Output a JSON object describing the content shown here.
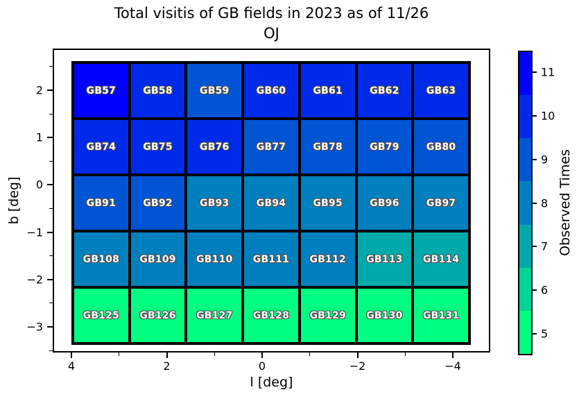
{
  "title": {
    "line1": "Total visitis of GB fields in 2023 as of 11/26",
    "line2": "OJ"
  },
  "axes": {
    "xlabel": "l [deg]",
    "ylabel": "b [deg]",
    "x_tick_values": [
      4,
      2,
      0,
      -2,
      -4
    ],
    "x_minor_tick_values": [
      3,
      1,
      -1,
      -3
    ],
    "y_tick_values": [
      2,
      1,
      0,
      -1,
      -2,
      -3
    ],
    "y_minor_tick_values": [
      2.5,
      1.5,
      0.5,
      -0.5,
      -1.5,
      -2.5,
      -3.5
    ]
  },
  "colorbar": {
    "label": "Observed Times",
    "ticks": [
      11,
      10,
      9,
      8,
      7,
      6,
      5
    ],
    "value_colors": {
      "11": "#0000FF",
      "10": "#002AEA",
      "9": "#0055D5",
      "8": "#0080BF",
      "7": "#00AAAA",
      "6": "#00D595",
      "5": "#00FF80"
    }
  },
  "chart_data": {
    "type": "heatmap",
    "title": "Total visitis of GB fields in 2023 as of 11/26 OJ",
    "xlabel": "l [deg]",
    "ylabel": "b [deg]",
    "colorbar_label": "Observed Times",
    "colorbar_ticks": [
      11,
      10,
      9,
      8,
      7,
      6,
      5
    ],
    "x_tick_labels": [
      4,
      2,
      0,
      -2,
      -4
    ],
    "y_tick_labels": [
      2,
      1,
      0,
      -1,
      -2,
      -3
    ],
    "grid_shape": {
      "rows": 5,
      "cols": 7
    },
    "rows": [
      {
        "fields": [
          "GB57",
          "GB58",
          "GB59",
          "GB60",
          "GB61",
          "GB62",
          "GB63"
        ],
        "values": [
          11,
          10,
          9,
          10,
          10,
          10,
          10
        ]
      },
      {
        "fields": [
          "GB74",
          "GB75",
          "GB76",
          "GB77",
          "GB78",
          "GB79",
          "GB80"
        ],
        "values": [
          10,
          10,
          10,
          9,
          9,
          9,
          9
        ]
      },
      {
        "fields": [
          "GB91",
          "GB92",
          "GB93",
          "GB94",
          "GB95",
          "GB96",
          "GB97"
        ],
        "values": [
          9,
          9,
          8,
          8,
          8,
          8,
          8
        ]
      },
      {
        "fields": [
          "GB108",
          "GB109",
          "GB110",
          "GB111",
          "GB112",
          "GB113",
          "GB114"
        ],
        "values": [
          8,
          8,
          8,
          8,
          8,
          7,
          7
        ]
      },
      {
        "fields": [
          "GB125",
          "GB126",
          "GB127",
          "GB128",
          "GB129",
          "GB130",
          "GB131"
        ],
        "values": [
          5,
          5,
          5,
          5,
          5,
          5,
          5
        ]
      }
    ]
  }
}
